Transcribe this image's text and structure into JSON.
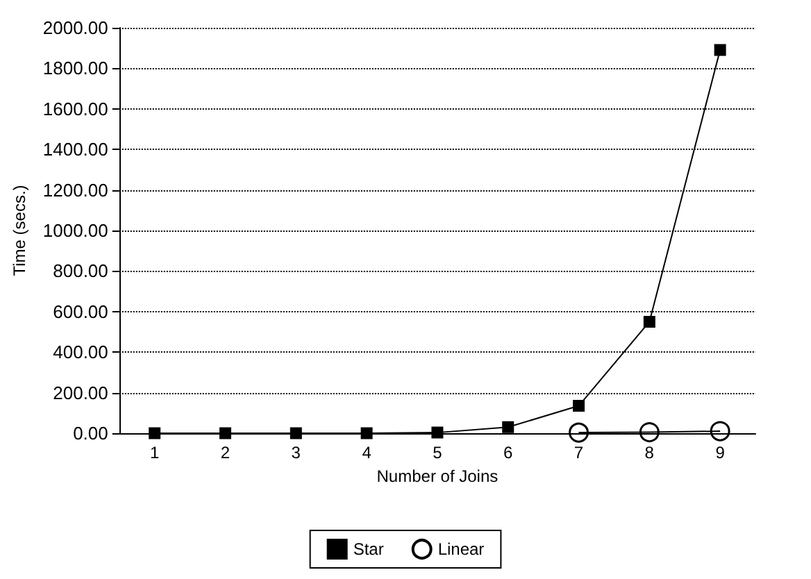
{
  "chart_data": {
    "type": "line",
    "xlabel": "Number of Joins",
    "ylabel": "Time (secs.)",
    "categories": [
      "1",
      "2",
      "3",
      "4",
      "5",
      "6",
      "7",
      "8",
      "9"
    ],
    "series": [
      {
        "name": "Star",
        "color": "#000000",
        "marker": "square",
        "values": [
          0,
          0,
          0,
          0,
          3,
          30,
          135,
          550,
          1890
        ]
      },
      {
        "name": "Linear",
        "color": "#000000",
        "marker": "circle",
        "values": [
          null,
          null,
          null,
          null,
          null,
          null,
          3,
          5,
          10
        ]
      }
    ],
    "ylim": [
      0,
      2000
    ],
    "yticks": [
      {
        "value": 0,
        "label": "0.00"
      },
      {
        "value": 200,
        "label": "200.00"
      },
      {
        "value": 400,
        "label": "400.00"
      },
      {
        "value": 600,
        "label": "600.00"
      },
      {
        "value": 800,
        "label": "800.00"
      },
      {
        "value": 1000,
        "label": "1000.00"
      },
      {
        "value": 1200,
        "label": "1200.00"
      },
      {
        "value": 1400,
        "label": "1400.00"
      },
      {
        "value": 1600,
        "label": "1600.00"
      },
      {
        "value": 1800,
        "label": "1800.00"
      },
      {
        "value": 2000,
        "label": "2000.00"
      }
    ],
    "grid": "y",
    "legend": "bottom",
    "line_style": "solid"
  }
}
